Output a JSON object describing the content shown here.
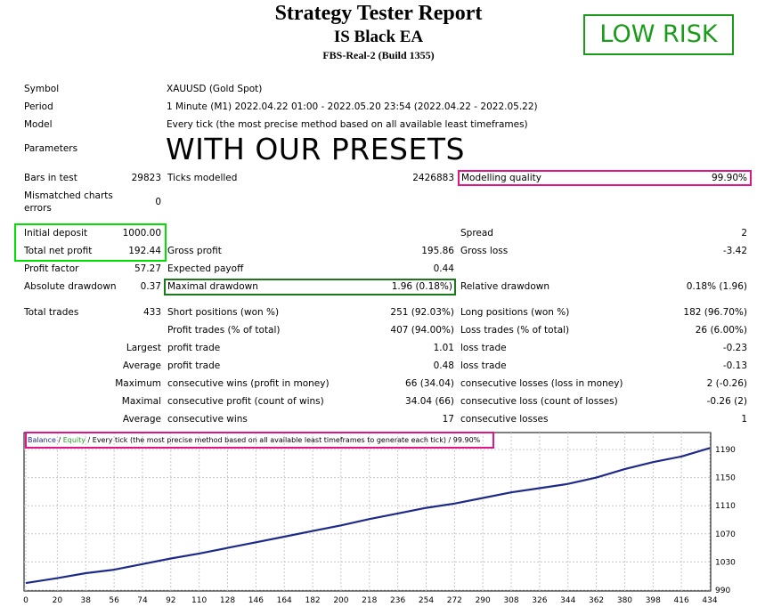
{
  "header": {
    "title": "Strategy Tester Report",
    "subtitle": "IS Black EA",
    "server": "FBS-Real-2 (Build 1355)",
    "badge": "LOW RISK",
    "overlay": "WITH OUR PRESETS"
  },
  "settings": {
    "symbol_label": "Symbol",
    "symbol_value": "XAUUSD (Gold Spot)",
    "period_label": "Period",
    "period_value": "1 Minute (M1) 2022.04.22 01:00 - 2022.05.20 23:54 (2022.04.22 - 2022.05.22)",
    "model_label": "Model",
    "model_value": "Every tick (the most precise method based on all available least timeframes)",
    "parameters_label": "Parameters"
  },
  "quality": {
    "bars_label": "Bars in test",
    "bars_value": "29823",
    "ticks_label": "Ticks modelled",
    "ticks_value": "2426883",
    "modelling_label": "Modelling quality",
    "modelling_value": "99.90%",
    "mismatched_label_1": "Mismatched charts",
    "mismatched_label_2": "errors",
    "mismatched_value": "0"
  },
  "results": {
    "initial_deposit_label": "Initial deposit",
    "initial_deposit_value": "1000.00",
    "spread_label": "Spread",
    "spread_value": "2",
    "net_profit_label": "Total net profit",
    "net_profit_value": "192.44",
    "gross_profit_label": "Gross profit",
    "gross_profit_value": "195.86",
    "gross_loss_label": "Gross loss",
    "gross_loss_value": "-3.42",
    "profit_factor_label": "Profit factor",
    "profit_factor_value": "57.27",
    "expected_payoff_label": "Expected payoff",
    "expected_payoff_value": "0.44",
    "abs_drawdown_label": "Absolute drawdown",
    "abs_drawdown_value": "0.37",
    "max_drawdown_label": "Maximal drawdown",
    "max_drawdown_value": "1.96 (0.18%)",
    "rel_drawdown_label": "Relative drawdown",
    "rel_drawdown_value": "0.18% (1.96)",
    "total_trades_label": "Total trades",
    "total_trades_value": "433",
    "short_label": "Short positions (won %)",
    "short_value": "251 (92.03%)",
    "long_label": "Long positions (won %)",
    "long_value": "182 (96.70%)",
    "profit_trades_label": "Profit trades (% of total)",
    "profit_trades_value": "407 (94.00%)",
    "loss_trades_label": "Loss trades (% of total)",
    "loss_trades_value": "26 (6.00%)",
    "largest_label": "Largest",
    "largest_profit_label": "profit trade",
    "largest_profit_value": "1.01",
    "largest_loss_label": "loss trade",
    "largest_loss_value": "-0.23",
    "average_label": "Average",
    "average_profit_label": "profit trade",
    "average_profit_value": "0.48",
    "average_loss_label": "loss trade",
    "average_loss_value": "-0.13",
    "maximum_label": "Maximum",
    "max_wins_label": "consecutive wins (profit in money)",
    "max_wins_value": "66 (34.04)",
    "max_losses_label": "consecutive losses (loss in money)",
    "max_losses_value": "2 (-0.26)",
    "maximal_label": "Maximal",
    "maximal_profit_label": "consecutive profit (count of wins)",
    "maximal_profit_value": "34.04 (66)",
    "maximal_loss_label": "consecutive loss (count of losses)",
    "maximal_loss_value": "-0.26 (2)",
    "avg_label": "Average",
    "avg_wins_label": "consecutive wins",
    "avg_wins_value": "17",
    "avg_losses_label": "consecutive losses",
    "avg_losses_value": "1"
  },
  "colors": {
    "green_box": "#1a9c1a",
    "bright_green_box": "#00e000",
    "magenta_box": "#e0158a",
    "balance_line": "#1e2a8a",
    "equity_text": "#22a022",
    "grid": "#c8c8c8"
  },
  "chart_legend": {
    "balance": "Balance",
    "sep1": " / ",
    "equity": "Equity",
    "rest": " / Every tick (the most precise method based on all available least timeframes to generate each tick)",
    "quality": " / 99.90%"
  },
  "chart_data": {
    "type": "line",
    "title": "",
    "xlabel": "",
    "ylabel": "",
    "x_ticks": [
      0,
      20,
      38,
      56,
      74,
      92,
      110,
      128,
      146,
      164,
      182,
      200,
      218,
      236,
      254,
      272,
      290,
      308,
      326,
      344,
      362,
      380,
      398,
      416,
      434
    ],
    "y_ticks": [
      990,
      1030,
      1070,
      1110,
      1150,
      1190
    ],
    "xlim": [
      0,
      434
    ],
    "ylim": [
      990,
      1190
    ],
    "grid": true,
    "series": [
      {
        "name": "Balance",
        "x": [
          0,
          20,
          38,
          56,
          74,
          92,
          110,
          128,
          146,
          164,
          182,
          200,
          218,
          236,
          254,
          272,
          290,
          308,
          326,
          344,
          362,
          380,
          398,
          416,
          434
        ],
        "values": [
          1000,
          1007,
          1014,
          1019,
          1027,
          1035,
          1042,
          1050,
          1058,
          1066,
          1074,
          1082,
          1091,
          1099,
          1107,
          1113,
          1121,
          1129,
          1135,
          1141,
          1150,
          1162,
          1172,
          1180,
          1192
        ]
      }
    ]
  }
}
